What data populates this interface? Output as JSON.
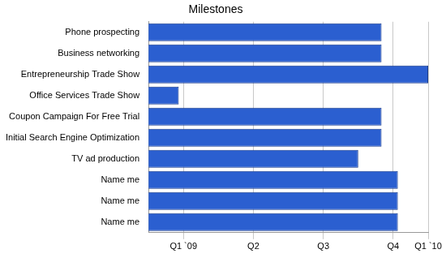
{
  "chart_data": {
    "type": "bar",
    "orientation": "horizontal",
    "title": "Milestones",
    "categories": [
      "Phone prospecting",
      "Business networking",
      "Entrepreneurship Trade Show",
      "Office Services Trade Show",
      "Coupon Campaign For Free Trial",
      "Initial Search Engine Optimization",
      "TV ad production",
      "Name me",
      "Name me",
      "Name me"
    ],
    "values": [
      10,
      10,
      12,
      1.3,
      10,
      10,
      9,
      10.7,
      10.7,
      10.7
    ],
    "color": "#2b5fd0",
    "xlim": [
      0,
      12
    ],
    "xticks": [
      {
        "value": 1.5,
        "label": "Q1 `09"
      },
      {
        "value": 4.5,
        "label": "Q2"
      },
      {
        "value": 7.5,
        "label": "Q3"
      },
      {
        "value": 10.5,
        "label": "Q4"
      },
      {
        "value": 12,
        "label": "Q1 `10"
      }
    ],
    "grid": true
  }
}
